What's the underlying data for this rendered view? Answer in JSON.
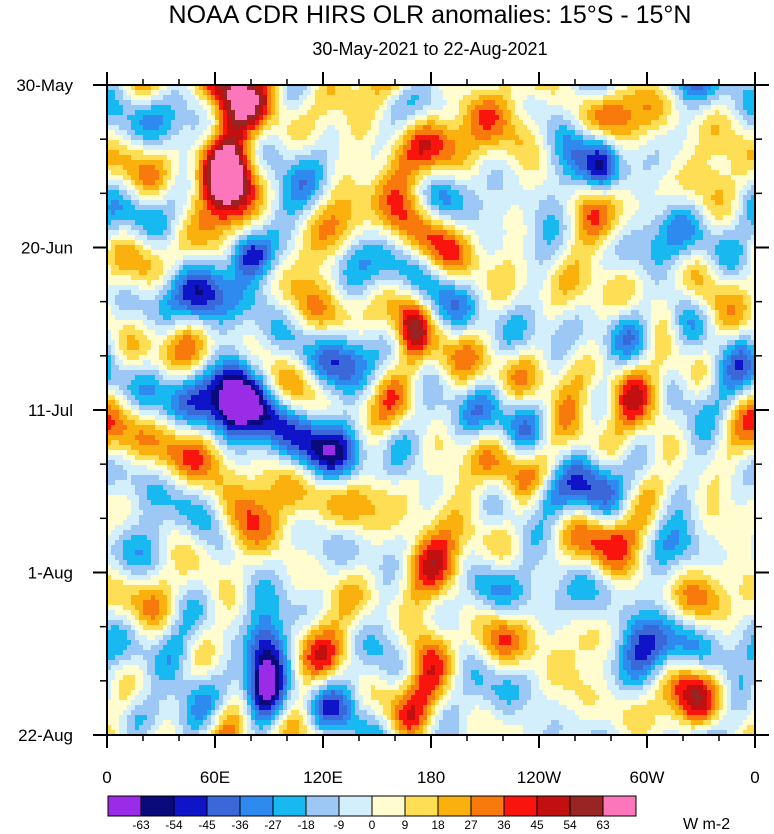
{
  "chart_data": {
    "type": "heatmap",
    "title": "NOAA CDR HIRS OLR anomalies: 15°S - 15°N",
    "subtitle": "30-May-2021 to 22-Aug-2021",
    "x_ticks": [
      "0",
      "60E",
      "120E",
      "180",
      "120W",
      "60W",
      "0"
    ],
    "x_range_deg_east": [
      0,
      360
    ],
    "y_ticks": [
      "30-May",
      "20-Jun",
      "11-Jul",
      "1-Aug",
      "22-Aug"
    ],
    "y_range_days": [
      0,
      84
    ],
    "colorbar": {
      "units": "W m-2",
      "levels": [
        "-63",
        "-54",
        "-45",
        "-36",
        "-27",
        "-18",
        "-9",
        "0",
        "9",
        "18",
        "27",
        "36",
        "45",
        "54",
        "63"
      ],
      "colors": [
        "#9a2be6",
        "#0a0a7a",
        "#0f14c8",
        "#3a68d9",
        "#2f8af0",
        "#17b9f0",
        "#9dc8f5",
        "#d3effb",
        "#fffccf",
        "#fdde55",
        "#fab10e",
        "#f97a0c",
        "#f9150d",
        "#c20f0f",
        "#982424",
        "#fb76bb"
      ]
    },
    "features": [
      {
        "lon": 68,
        "day": 4,
        "value": 50
      },
      {
        "lon": 170,
        "day": 32,
        "value": 45
      },
      {
        "lon": 85,
        "day": 42,
        "value": -58
      },
      {
        "lon": 70,
        "day": 40,
        "value": -45
      },
      {
        "lon": 88,
        "day": 73,
        "value": -52
      },
      {
        "lon": 88,
        "day": 78,
        "value": -45
      },
      {
        "lon": 80,
        "day": 22,
        "value": -45
      },
      {
        "lon": 165,
        "day": 10,
        "value": 30
      },
      {
        "lon": 205,
        "day": 3,
        "value": 25
      }
    ]
  }
}
